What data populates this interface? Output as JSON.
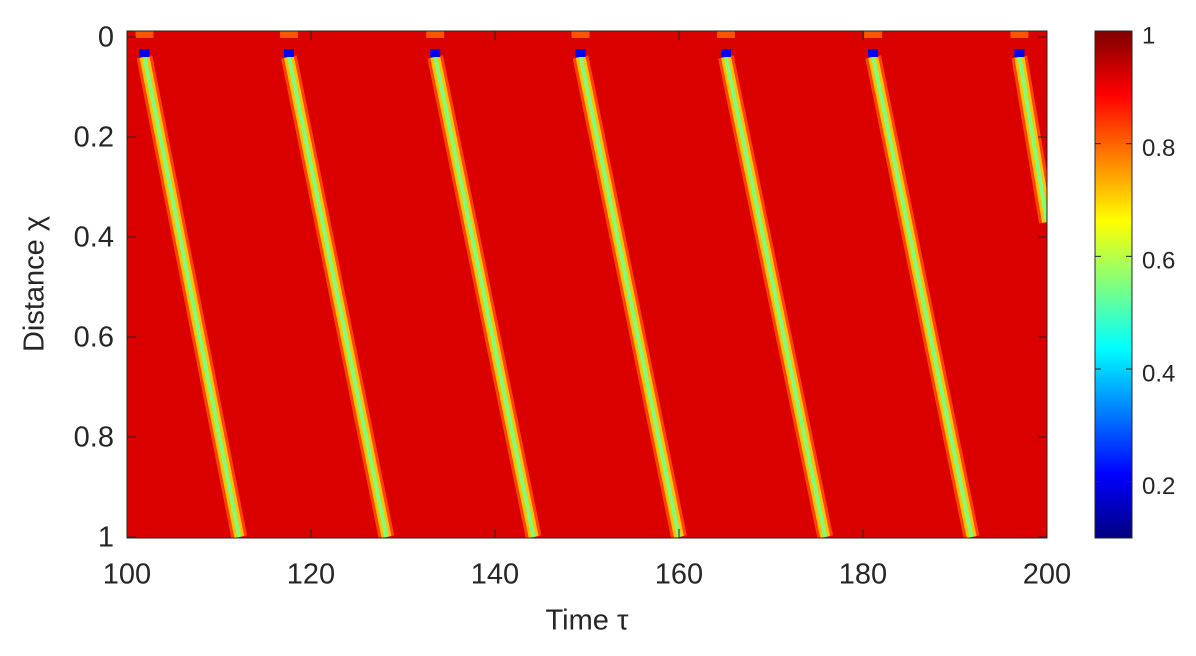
{
  "chart_data": {
    "type": "heatmap",
    "x_label": "Time τ",
    "y_label": "Distance χ",
    "xlim": [
      100,
      200
    ],
    "xticks": [
      100,
      120,
      140,
      160,
      180,
      200
    ],
    "ylim": [
      0,
      1
    ],
    "yticks": [
      0,
      0.2,
      0.4,
      0.6,
      0.8,
      1
    ],
    "y_reversed": true,
    "colormap": "jet",
    "clim": [
      0.1,
      1
    ],
    "cticks": [
      0.2,
      0.4,
      0.6,
      0.8,
      1
    ],
    "background_value": 0.92,
    "stripes": [
      {
        "x": [
          101.9,
          112.2
        ],
        "y": [
          0.04,
          1
        ],
        "value": 0.55,
        "tip_value": 0.2,
        "top_value": 0.8
      },
      {
        "x": [
          117.6,
          128.2
        ],
        "y": [
          0.04,
          1
        ],
        "value": 0.55,
        "tip_value": 0.2,
        "top_value": 0.8
      },
      {
        "x": [
          133.5,
          144.2
        ],
        "y": [
          0.04,
          1
        ],
        "value": 0.55,
        "tip_value": 0.2,
        "top_value": 0.8
      },
      {
        "x": [
          149.3,
          160.0
        ],
        "y": [
          0.04,
          1
        ],
        "value": 0.55,
        "tip_value": 0.2,
        "top_value": 0.8
      },
      {
        "x": [
          165.1,
          175.9
        ],
        "y": [
          0.04,
          1
        ],
        "value": 0.55,
        "tip_value": 0.2,
        "top_value": 0.8
      },
      {
        "x": [
          181.1,
          191.8
        ],
        "y": [
          0.04,
          1
        ],
        "value": 0.55,
        "tip_value": 0.2,
        "top_value": 0.8
      },
      {
        "x": [
          197.0,
          200.0
        ],
        "y": [
          0.04,
          0.37
        ],
        "value": 0.55,
        "tip_value": 0.2,
        "top_value": 0.8
      }
    ]
  }
}
